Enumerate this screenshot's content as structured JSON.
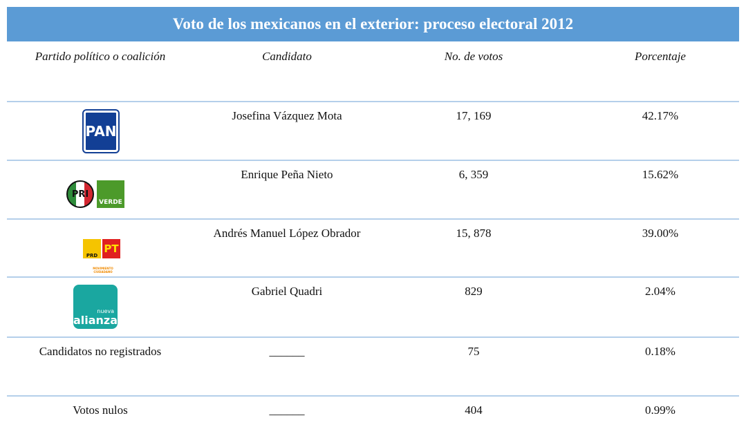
{
  "header": {
    "title": "Voto de los mexicanos en el exterior: proceso electoral 2012"
  },
  "table": {
    "columns": [
      "Partido político o coalición",
      "Candidato",
      "No. de votos",
      "Porcentaje"
    ],
    "rows": [
      {
        "logos": [
          {
            "text": "PAN",
            "color": "#123f95"
          }
        ],
        "candidate": "Josefina Vázquez Mota",
        "votes": "17, 169",
        "percent": "42.17%"
      },
      {
        "logos": [
          {
            "text": "PRI",
            "color": "#d22630"
          },
          {
            "text": "VERDE",
            "color": "#4c9a2a"
          }
        ],
        "candidate": "Enrique Peña Nieto",
        "votes": "6, 359",
        "percent": "15.62%"
      },
      {
        "logos": [
          {
            "text": "PRD",
            "color": "#f5c400"
          },
          {
            "text": "PT",
            "color": "#e02020"
          },
          {
            "text": "MOVIMIENTO CIUDADANO",
            "color": "#f08a00"
          }
        ],
        "candidate": "Andrés Manuel López Obrador",
        "votes": "15, 878",
        "percent": "39.00%"
      },
      {
        "logos": [
          {
            "text": "nueva",
            "color": "#1aa7a0"
          },
          {
            "text": "alianza",
            "color": "#1aa7a0"
          }
        ],
        "candidate": "Gabriel Quadri",
        "votes": "829",
        "percent": "2.04%"
      },
      {
        "party": "Candidatos no registrados",
        "candidate": "______",
        "votes": "75",
        "percent": "0.18%"
      },
      {
        "party": "Votos nulos",
        "candidate": "______",
        "votes": "404",
        "percent": "0.99%"
      }
    ]
  }
}
